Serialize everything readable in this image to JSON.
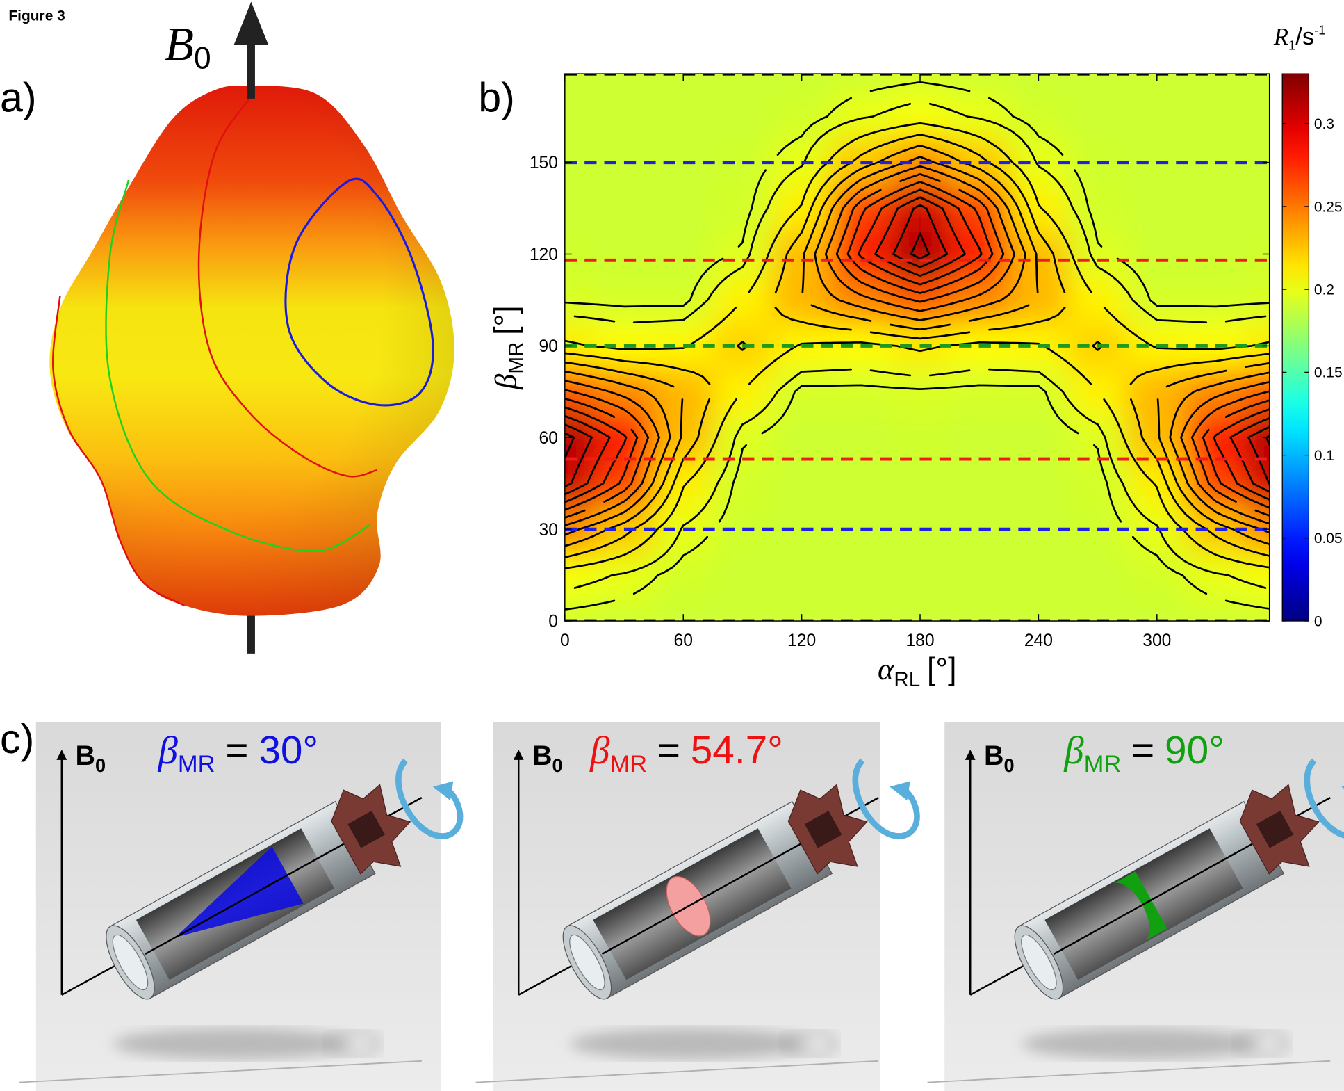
{
  "figure_label": "Figure 3",
  "panel_labels": [
    "a)",
    "b)",
    "c)"
  ],
  "panel_a": {
    "field_label": {
      "symbol": "B",
      "subscript": "0"
    }
  },
  "chart_data": {
    "type": "contour",
    "x_label": {
      "symbol": "α",
      "subscript": "RL",
      "unit": "[°]"
    },
    "y_label": {
      "symbol": "β",
      "subscript": "MR",
      "unit": "[°]"
    },
    "x": [
      0,
      30,
      60,
      90,
      120,
      150,
      180,
      210,
      240,
      270,
      300,
      330,
      360
    ],
    "y": [
      0,
      15,
      30,
      45,
      60,
      75,
      90,
      105,
      120,
      135,
      150,
      165,
      180
    ],
    "z": [
      [
        0.192,
        0.191,
        0.19,
        0.19,
        0.19,
        0.19,
        0.19,
        0.19,
        0.19,
        0.19,
        0.19,
        0.191,
        0.192
      ],
      [
        0.204,
        0.199,
        0.192,
        0.19,
        0.19,
        0.19,
        0.19,
        0.19,
        0.19,
        0.19,
        0.192,
        0.199,
        0.204
      ],
      [
        0.245,
        0.224,
        0.199,
        0.191,
        0.19,
        0.19,
        0.19,
        0.19,
        0.19,
        0.191,
        0.199,
        0.224,
        0.245
      ],
      [
        0.304,
        0.267,
        0.211,
        0.192,
        0.19,
        0.19,
        0.19,
        0.19,
        0.19,
        0.192,
        0.211,
        0.267,
        0.304
      ],
      [
        0.315,
        0.282,
        0.228,
        0.196,
        0.19,
        0.19,
        0.191,
        0.19,
        0.19,
        0.196,
        0.228,
        0.282,
        0.315
      ],
      [
        0.262,
        0.246,
        0.23,
        0.21,
        0.193,
        0.193,
        0.194,
        0.193,
        0.193,
        0.21,
        0.23,
        0.246,
        0.262
      ],
      [
        0.212,
        0.207,
        0.209,
        0.221,
        0.209,
        0.207,
        0.212,
        0.207,
        0.209,
        0.221,
        0.209,
        0.207,
        0.212
      ],
      [
        0.194,
        0.193,
        0.193,
        0.21,
        0.23,
        0.246,
        0.262,
        0.246,
        0.23,
        0.21,
        0.193,
        0.193,
        0.194
      ],
      [
        0.191,
        0.19,
        0.19,
        0.196,
        0.228,
        0.282,
        0.315,
        0.282,
        0.228,
        0.196,
        0.19,
        0.19,
        0.191
      ],
      [
        0.19,
        0.19,
        0.19,
        0.192,
        0.211,
        0.267,
        0.304,
        0.267,
        0.211,
        0.192,
        0.19,
        0.19,
        0.19
      ],
      [
        0.19,
        0.19,
        0.19,
        0.191,
        0.199,
        0.224,
        0.245,
        0.224,
        0.199,
        0.191,
        0.19,
        0.19,
        0.19
      ],
      [
        0.19,
        0.19,
        0.19,
        0.19,
        0.192,
        0.199,
        0.204,
        0.199,
        0.192,
        0.19,
        0.19,
        0.19,
        0.19
      ],
      [
        0.19,
        0.19,
        0.19,
        0.19,
        0.19,
        0.191,
        0.192,
        0.191,
        0.19,
        0.19,
        0.19,
        0.19,
        0.19
      ]
    ],
    "contour_levels": [
      0.195,
      0.2,
      0.21,
      0.22,
      0.23,
      0.24,
      0.25,
      0.26,
      0.27,
      0.28,
      0.29,
      0.3,
      0.31
    ],
    "contour_color": "#000000",
    "colormap": "jet",
    "colorbar": {
      "label": {
        "symbol": "R",
        "subscript": "1",
        "unit": "/s",
        "superscript": "-1"
      },
      "clim": [
        0,
        0.33
      ],
      "ticks": [
        0,
        0.05,
        0.1,
        0.15,
        0.2,
        0.25,
        0.3
      ]
    },
    "xlim": [
      0,
      357
    ],
    "ylim": [
      0,
      179
    ],
    "xticks": [
      0,
      60,
      120,
      180,
      240,
      300
    ],
    "yticks": [
      0,
      30,
      60,
      90,
      120,
      150
    ],
    "hlines": [
      {
        "value": 179,
        "color": "#000000"
      },
      {
        "value": 150,
        "color": "#1f1fe6"
      },
      {
        "value": 118,
        "color": "#ee1c1c"
      },
      {
        "value": 90,
        "color": "#1f9a1f"
      },
      {
        "value": 53,
        "color": "#ee1c1c"
      },
      {
        "value": 30,
        "color": "#1f1fe6"
      },
      {
        "value": 0,
        "color": "#000000"
      }
    ]
  },
  "panel_c": {
    "field_label": {
      "symbol": "B",
      "subscript": "0"
    },
    "panels": [
      {
        "symbol": "β",
        "subscript": "MR",
        "relation": "=",
        "value": "30°",
        "color": "#1010e0"
      },
      {
        "symbol": "β",
        "subscript": "MR",
        "relation": "=",
        "value": "54.7°",
        "color": "#ee1111"
      },
      {
        "symbol": "β",
        "subscript": "MR",
        "relation": "=",
        "value": "90°",
        "color": "#10a010"
      }
    ]
  }
}
